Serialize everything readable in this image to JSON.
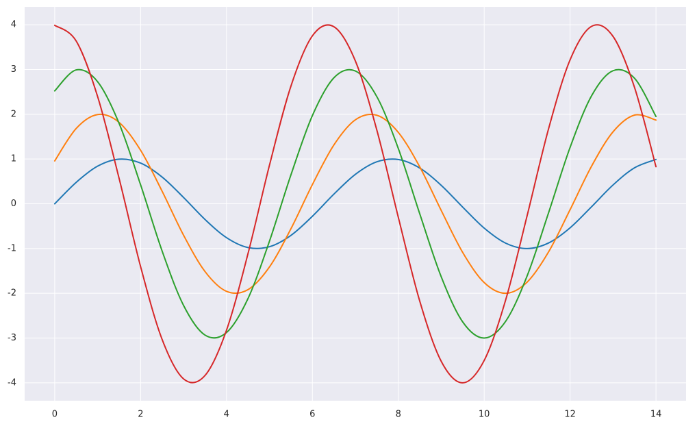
{
  "chart_data": {
    "type": "line",
    "x": [
      0,
      0.5,
      1,
      1.5,
      2,
      2.5,
      3,
      3.5,
      4,
      4.5,
      5,
      5.5,
      6,
      6.5,
      7,
      7.5,
      8,
      8.5,
      9,
      9.5,
      10,
      10.5,
      11,
      11.5,
      12,
      12.5,
      13,
      13.5,
      14
    ],
    "series": [
      {
        "color": "#1f77b4",
        "values": [
          0,
          0.479,
          0.841,
          0.997,
          0.909,
          0.598,
          0.141,
          -0.351,
          -0.757,
          -0.978,
          -0.959,
          -0.706,
          -0.279,
          0.215,
          0.657,
          0.938,
          0.989,
          0.798,
          0.412,
          -0.075,
          -0.544,
          -0.88,
          -1.0,
          -0.875,
          -0.537,
          -0.066,
          0.42,
          0.804,
          0.991
        ]
      },
      {
        "color": "#ff7f0e",
        "values": [
          0.958,
          1.682,
          1.994,
          1.818,
          1.196,
          0.282,
          -0.702,
          -1.514,
          -1.956,
          -1.918,
          -1.412,
          -0.558,
          0.43,
          1.314,
          1.876,
          1.978,
          1.596,
          0.824,
          -0.15,
          -1.088,
          -1.76,
          -2.0,
          -1.75,
          -1.074,
          -0.132,
          0.84,
          1.608,
          1.982,
          1.87
        ]
      },
      {
        "color": "#2ca02c",
        "values": [
          2.523,
          2.991,
          2.727,
          1.794,
          0.423,
          -1.053,
          -2.271,
          -2.934,
          -2.877,
          -2.118,
          -0.837,
          0.645,
          1.971,
          2.814,
          2.967,
          2.394,
          1.236,
          -0.225,
          -1.632,
          -2.64,
          -3.0,
          -2.625,
          -1.611,
          -0.198,
          1.26,
          2.412,
          2.973,
          2.805,
          1.95
        ]
      },
      {
        "color": "#d62728",
        "values": [
          3.988,
          3.636,
          2.392,
          0.564,
          -1.404,
          -3.028,
          -3.912,
          -3.836,
          -2.824,
          -1.116,
          0.86,
          2.628,
          3.752,
          3.956,
          3.192,
          1.648,
          -0.3,
          -2.176,
          -3.52,
          -4.0,
          -3.5,
          -2.148,
          -0.264,
          1.68,
          3.216,
          3.964,
          3.74,
          2.6,
          0.828
        ]
      }
    ],
    "xlim": [
      -0.7,
      14.7
    ],
    "xticks": [
      0,
      2,
      4,
      6,
      8,
      10,
      12,
      14
    ],
    "ylim": [
      -4.4,
      4.4
    ],
    "yticks": [
      -4,
      -3,
      -2,
      -1,
      0,
      1,
      2,
      3,
      4
    ],
    "grid": true
  }
}
